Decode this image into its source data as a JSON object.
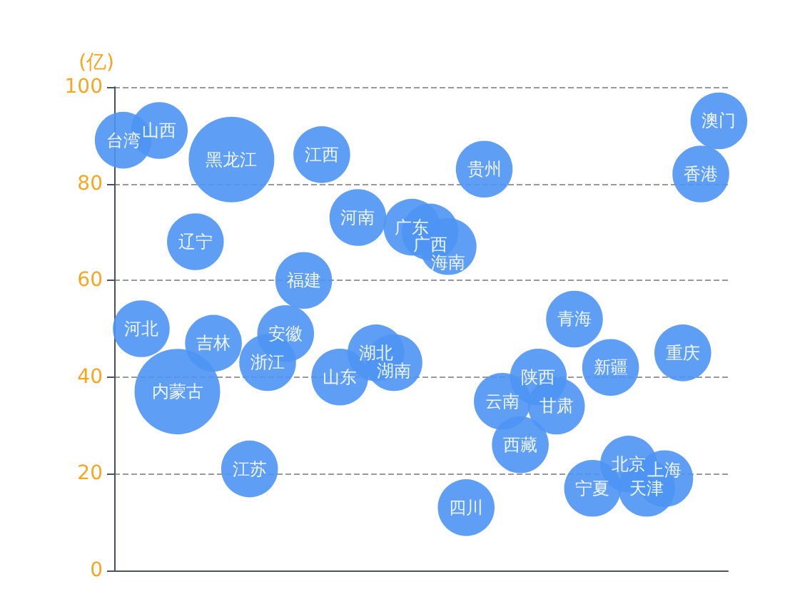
{
  "chart_data": {
    "type": "bubble",
    "ylabel": "(亿)",
    "categories": [
      null,
      null,
      null,
      null,
      null,
      null,
      null,
      null,
      null,
      null,
      null,
      null,
      null,
      null,
      null,
      null,
      null,
      null,
      null,
      null,
      null,
      null,
      null,
      null,
      null,
      null,
      null,
      null,
      null,
      null,
      null,
      null,
      null,
      null
    ],
    "series": [
      {
        "color": "#4e94f4",
        "values": [
          89,
          50,
          91,
          37,
          68,
          47,
          85,
          21,
          43,
          49,
          60,
          86,
          40,
          73,
          45,
          43,
          71,
          70,
          67,
          13,
          83,
          35,
          26,
          40,
          34,
          52,
          17,
          42,
          22,
          17,
          19,
          45,
          82,
          93
        ],
        "sizes": [
          0.44,
          0.44,
          0.44,
          1,
          0.44,
          0.44,
          1,
          0.44,
          0.44,
          0.44,
          0.44,
          0.44,
          0.44,
          0.44,
          0.44,
          0.44,
          0.44,
          0.44,
          0.44,
          0.44,
          0.44,
          0.44,
          0.44,
          0.44,
          0.44,
          0.44,
          0.44,
          0.44,
          0.44,
          0.44,
          0.44,
          0.44,
          0.44,
          0.44
        ],
        "value_labels": [
          "台湾",
          "河北",
          "山西",
          "内蒙古",
          "辽宁",
          "吉林",
          "黑龙江",
          "江苏",
          "浙江",
          "安徽",
          "福建",
          "江西",
          "山东",
          "河南",
          "湖北",
          "湖南",
          "广东",
          "广西",
          "海南",
          "四川",
          "贵州",
          "云南",
          "西藏",
          "陕西",
          "甘肃",
          "青海",
          "宁夏",
          "新疆",
          "北京",
          "天津",
          "上海",
          "重庆",
          "香港",
          "澳门"
        ]
      }
    ],
    "ylim": [
      0,
      100
    ],
    "yticks": [
      0,
      20,
      40,
      60,
      80,
      100
    ],
    "grid": "y",
    "tick_labels": "y"
  }
}
